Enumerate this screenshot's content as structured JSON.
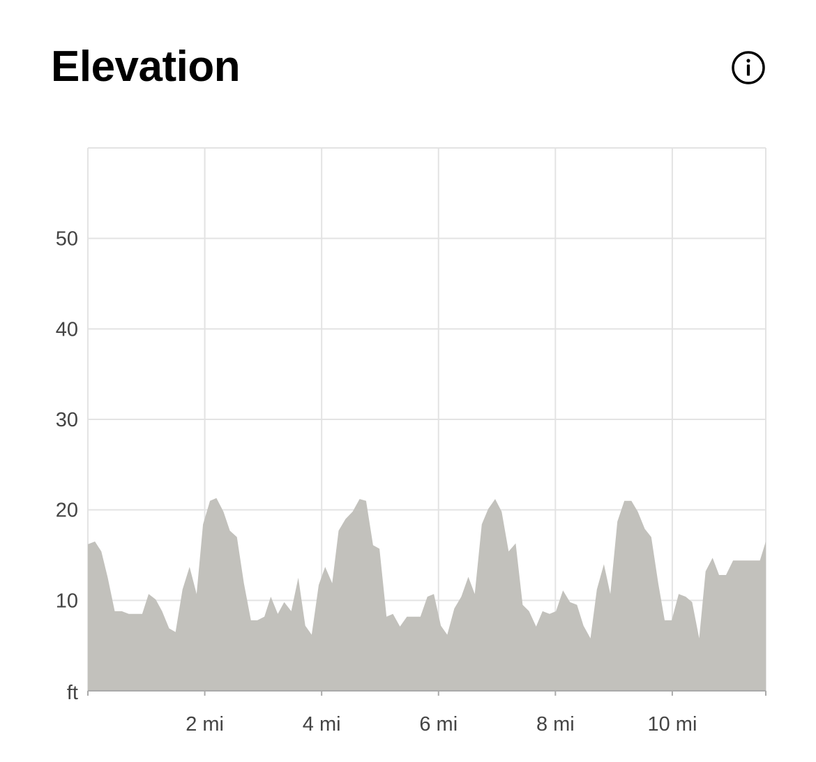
{
  "header": {
    "title": "Elevation",
    "info_icon": "info-circle-icon"
  },
  "chart_data": {
    "type": "area",
    "title": "Elevation",
    "xlabel": "",
    "ylabel": "",
    "y_unit_label": "ft",
    "xlim": [
      0,
      11.6
    ],
    "ylim": [
      0,
      60
    ],
    "x_ticks": [
      {
        "value": 2,
        "label": "2 mi"
      },
      {
        "value": 4,
        "label": "4 mi"
      },
      {
        "value": 6,
        "label": "6 mi"
      },
      {
        "value": 8,
        "label": "8 mi"
      },
      {
        "value": 10,
        "label": "10 mi"
      }
    ],
    "y_ticks": [
      {
        "value": 10,
        "label": "10"
      },
      {
        "value": 20,
        "label": "20"
      },
      {
        "value": 30,
        "label": "30"
      },
      {
        "value": 40,
        "label": "40"
      },
      {
        "value": 50,
        "label": "50"
      }
    ],
    "grid": true,
    "fill_color": "#c2c1bc",
    "grid_color": "#e3e3e3",
    "x": [
      0,
      0.12,
      0.23,
      0.34,
      0.46,
      0.58,
      0.7,
      0.81,
      0.93,
      1.04,
      1.16,
      1.27,
      1.39,
      1.5,
      1.62,
      1.74,
      1.86,
      1.97,
      2.09,
      2.2,
      2.32,
      2.43,
      2.55,
      2.67,
      2.79,
      2.9,
      3.02,
      3.13,
      3.25,
      3.36,
      3.48,
      3.6,
      3.72,
      3.83,
      3.95,
      4.06,
      4.18,
      4.29,
      4.41,
      4.53,
      4.65,
      4.76,
      4.88,
      4.99,
      5.11,
      5.22,
      5.34,
      5.46,
      5.58,
      5.69,
      5.81,
      5.92,
      6.04,
      6.15,
      6.27,
      6.39,
      6.51,
      6.62,
      6.74,
      6.85,
      6.97,
      7.08,
      7.2,
      7.32,
      7.44,
      7.55,
      7.67,
      7.78,
      7.9,
      8.01,
      8.13,
      8.25,
      8.37,
      8.48,
      8.6,
      8.71,
      8.83,
      8.94,
      9.06,
      9.18,
      9.3,
      9.41,
      9.53,
      9.64,
      9.76,
      9.87,
      9.99,
      10.11,
      10.23,
      10.34,
      10.46,
      10.57,
      10.69,
      10.8,
      10.92,
      11.04,
      11.16,
      11.27,
      11.39,
      11.5,
      11.6
    ],
    "series": [
      {
        "name": "",
        "values": [
          16.2,
          16.5,
          15.4,
          12.5,
          8.8,
          8.8,
          8.5,
          8.5,
          8.5,
          10.7,
          10.1,
          8.8,
          6.9,
          6.5,
          11.2,
          13.7,
          10.7,
          18.4,
          21,
          21.3,
          19.8,
          17.7,
          17,
          11.9,
          7.8,
          7.8,
          8.2,
          10.4,
          8.5,
          9.8,
          8.8,
          12.5,
          7.2,
          6.2,
          11.7,
          13.7,
          11.9,
          17.7,
          19,
          19.8,
          21.2,
          21,
          16.1,
          15.7,
          8.2,
          8.5,
          7.1,
          8.2,
          8.2,
          8.2,
          10.4,
          10.7,
          7.2,
          6.2,
          9.1,
          10.4,
          12.6,
          10.7,
          18.4,
          20.1,
          21.2,
          19.8,
          15.4,
          16.3,
          9.5,
          8.8,
          7.1,
          8.8,
          8.5,
          8.8,
          11.1,
          9.8,
          9.5,
          7.2,
          5.8,
          11.2,
          14,
          10.7,
          18.7,
          21,
          21,
          19.8,
          17.9,
          17,
          11.9,
          7.8,
          7.8,
          10.7,
          10.4,
          9.8,
          5.8,
          13.2,
          14.7,
          12.8,
          12.8,
          14.4,
          14.4,
          14.4,
          14.4,
          14.4,
          16.5
        ]
      }
    ]
  }
}
